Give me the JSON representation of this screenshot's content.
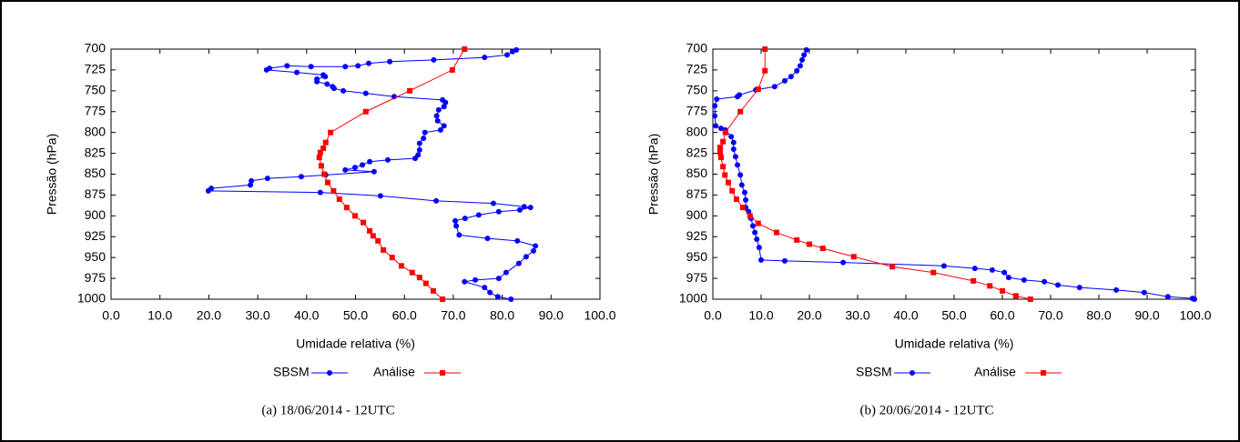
{
  "chart_data": [
    {
      "type": "line",
      "caption": "(a)  18/06/2014 - 12UTC",
      "xlabel": "Umidade relativa (%)",
      "ylabel": "Pressão (hPa)",
      "xlim": [
        0,
        100
      ],
      "ylim": [
        1000,
        700
      ],
      "xticks": [
        {
          "value": 0,
          "label": "0.0"
        },
        {
          "value": 10,
          "label": "10.0"
        },
        {
          "value": 20,
          "label": "20.0"
        },
        {
          "value": 30,
          "label": "30.0"
        },
        {
          "value": 40,
          "label": "40.0"
        },
        {
          "value": 50,
          "label": "50.0"
        },
        {
          "value": 60,
          "label": "60.0"
        },
        {
          "value": 70,
          "label": "70.0"
        },
        {
          "value": 80,
          "label": "80.0"
        },
        {
          "value": 90,
          "label": "90.0"
        },
        {
          "value": 100,
          "label": "100.0"
        }
      ],
      "yticks": [
        700,
        725,
        750,
        775,
        800,
        825,
        850,
        875,
        900,
        925,
        950,
        975,
        1000
      ],
      "series": [
        {
          "name": "SBSM",
          "color": "#0000ff",
          "marker": "circle",
          "x": [
            82.9,
            82.1,
            81,
            76.4,
            66,
            57,
            52.7,
            50.5,
            47.9,
            40.9,
            36,
            32.4,
            31.8,
            38,
            43.4,
            43.8,
            42.1,
            42.1,
            44.2,
            45.3,
            45.6,
            47.5,
            52.1,
            57.9,
            67.8,
            68.4,
            68.1,
            67,
            66.6,
            66.8,
            68.1,
            67.4,
            64.2,
            63.9,
            63.1,
            63.1,
            62.8,
            62.2,
            56.6,
            52.9,
            51.4,
            49.9,
            47.9,
            53.8,
            43.9,
            38.9,
            32,
            28.7,
            28.5,
            20.5,
            19.9,
            42.8,
            55.1,
            66.5,
            78.2,
            84.5,
            85.8,
            83.6,
            79.3,
            75.2,
            72.4,
            70.4,
            70.6,
            71.2,
            77,
            83.1,
            86.8,
            86.4,
            84.9,
            83.4,
            80.8,
            79.3,
            74.5,
            72.3,
            76.4,
            77.5,
            79.1,
            81.8
          ],
          "y": [
            701,
            703,
            707,
            710,
            713,
            715,
            717,
            720,
            721,
            721,
            720,
            723,
            725,
            728,
            731,
            733,
            736,
            739,
            742,
            745,
            747,
            750,
            753,
            757,
            761,
            764,
            769,
            773,
            780,
            786,
            792,
            797,
            800,
            807,
            813,
            821,
            827,
            831,
            833,
            835,
            839,
            842,
            845,
            847,
            851,
            853,
            855,
            858,
            863,
            867,
            870,
            872,
            876,
            882,
            885,
            889,
            890,
            893,
            895,
            899,
            903,
            906,
            912,
            923,
            927,
            930,
            936,
            942,
            949,
            957,
            968,
            975,
            977,
            979,
            986,
            992,
            997,
            1000
          ]
        },
        {
          "name": "Análise",
          "color": "#ff0000",
          "marker": "square",
          "x": [
            72.3,
            69.8,
            61.1,
            52.1,
            44.9,
            43.9,
            43.4,
            42.8,
            42.6,
            43.0,
            43.6,
            44.3,
            45.5,
            46.7,
            48.2,
            49.9,
            51.6,
            52.9,
            53.6,
            54.6,
            55.7,
            57.5,
            59.4,
            61.6,
            63.1,
            64.4,
            65.9,
            67.8
          ],
          "y": [
            700,
            725,
            750,
            775,
            800,
            812,
            819,
            824,
            830,
            840,
            850,
            860,
            870,
            880,
            890,
            900,
            908,
            918,
            924,
            930,
            941,
            950,
            960,
            968,
            974,
            981,
            990,
            1000
          ]
        }
      ]
    },
    {
      "type": "line",
      "caption": "(b)  20/06/2014 - 12UTC",
      "xlabel": "Umidade relativa (%)",
      "ylabel": "Pressão (hPa)",
      "xlim": [
        0,
        100
      ],
      "ylim": [
        1000,
        700
      ],
      "xticks": [
        {
          "value": 0,
          "label": "0.0"
        },
        {
          "value": 10,
          "label": "10.0"
        },
        {
          "value": 20,
          "label": "20.0"
        },
        {
          "value": 30,
          "label": "30.0"
        },
        {
          "value": 40,
          "label": "40.0"
        },
        {
          "value": 50,
          "label": "50.0"
        },
        {
          "value": 60,
          "label": "60.0"
        },
        {
          "value": 70,
          "label": "70.0"
        },
        {
          "value": 80,
          "label": "80.0"
        },
        {
          "value": 90,
          "label": "90.0"
        },
        {
          "value": 100,
          "label": "100.0"
        }
      ],
      "yticks": [
        700,
        725,
        750,
        775,
        800,
        825,
        850,
        875,
        900,
        925,
        950,
        975,
        1000
      ],
      "series": [
        {
          "name": "SBSM",
          "color": "#0000ff",
          "marker": "circle",
          "x": [
            19.4,
            18.9,
            18.5,
            18.1,
            17.4,
            16.2,
            14.9,
            12.8,
            8.9,
            5.5,
            5.1,
            0.8,
            0.4,
            0.4,
            0.6,
            1.7,
            2.6,
            3.8,
            4.3,
            4.3,
            4.7,
            5.1,
            5.7,
            6.0,
            6.6,
            6.8,
            6.8,
            7.4,
            7.9,
            8.3,
            8.7,
            9.1,
            9.6,
            10,
            14.9,
            27,
            47.9,
            54.3,
            57.9,
            60.4,
            61.3,
            64.5,
            68.7,
            71.5,
            76,
            83.6,
            89.4,
            94.3,
            99.4,
            99.8
          ],
          "y": [
            701,
            707,
            713,
            720,
            726,
            733,
            738,
            745,
            749,
            755,
            757,
            760,
            768,
            780,
            792,
            795,
            797,
            805,
            812,
            820,
            829,
            839,
            851,
            863,
            872,
            881,
            890,
            895,
            903,
            912,
            920,
            928,
            938,
            953,
            954,
            956,
            960,
            963,
            965,
            968,
            974,
            977,
            979,
            983,
            986,
            989,
            992,
            997,
            999,
            1000
          ]
        },
        {
          "name": "Análise",
          "color": "#ff0000",
          "marker": "square",
          "x": [
            10.8,
            10.8,
            9.4,
            5.7,
            2.6,
            2.1,
            1.5,
            1.5,
            1.7,
            2.1,
            2.5,
            3.2,
            4.0,
            4.9,
            6.2,
            7.7,
            9.4,
            13.2,
            17.4,
            20.0,
            22.8,
            29.2,
            37.2,
            45.7,
            54,
            57.4,
            60.0,
            62.8,
            65.8
          ],
          "y": [
            700,
            726,
            748,
            775,
            800,
            811,
            818,
            824,
            830,
            841,
            851,
            860,
            870,
            880,
            890,
            900,
            909,
            920,
            929,
            934,
            939,
            949,
            961,
            968,
            978,
            984,
            990,
            996,
            1000
          ]
        }
      ]
    }
  ]
}
